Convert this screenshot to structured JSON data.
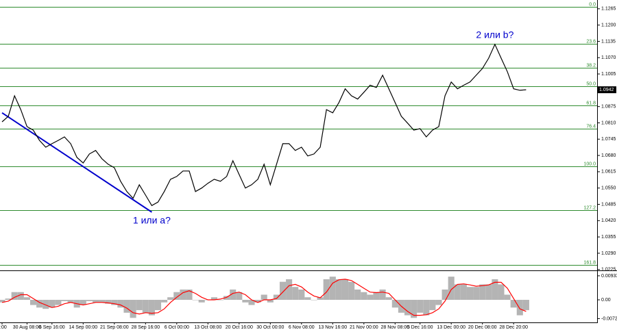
{
  "chart_data": [
    {
      "type": "line",
      "color": "#000000",
      "categories": [
        "0:00",
        null,
        null,
        null,
        "30 Aug 08:00",
        null,
        null,
        null,
        "6 Sep 16:00",
        null,
        null,
        null,
        null,
        "14 Sep 00:00",
        null,
        null,
        null,
        null,
        "21 Sep 08:00",
        null,
        null,
        null,
        null,
        "28 Sep 16:00",
        null,
        null,
        null,
        null,
        "6 Oct 00:00",
        null,
        null,
        null,
        null,
        "13 Oct 08:00",
        null,
        null,
        null,
        null,
        "20 Oct 16:00",
        null,
        null,
        null,
        null,
        "30 Oct 00:00",
        null,
        null,
        null,
        null,
        "6 Nov 08:00",
        null,
        null,
        null,
        null,
        "13 Nov 16:00",
        null,
        null,
        null,
        null,
        "21 Nov 00:00",
        null,
        null,
        null,
        null,
        "28 Nov 08:00",
        null,
        null,
        null,
        "5 Dec 16:00",
        null,
        null,
        null,
        null,
        "13 Dec 00:00",
        null,
        null,
        null,
        null,
        "20 Dec 08:00",
        null,
        null,
        null,
        null,
        "28 Dec 20:00",
        null,
        null
      ],
      "values": [
        1.0814,
        1.0836,
        1.0918,
        1.0863,
        1.0795,
        1.0781,
        1.074,
        1.0713,
        1.0727,
        1.074,
        1.0754,
        1.0727,
        1.0672,
        1.065,
        1.0686,
        1.07,
        1.0667,
        1.0645,
        1.0631,
        1.0577,
        1.0536,
        1.0509,
        1.0563,
        1.0522,
        1.048,
        1.0494,
        1.0536,
        1.0585,
        1.0596,
        1.0618,
        1.0618,
        1.0536,
        1.055,
        1.0569,
        1.0585,
        1.0577,
        1.0596,
        1.0659,
        1.0604,
        1.055,
        1.0563,
        1.0585,
        1.0645,
        1.0563,
        1.0645,
        1.0727,
        1.0727,
        1.07,
        1.0713,
        1.0678,
        1.0686,
        1.0713,
        1.0863,
        1.085,
        1.0891,
        1.0946,
        1.0918,
        1.0905,
        1.0932,
        1.096,
        1.0951,
        1.1,
        1.0946,
        1.0891,
        1.0836,
        1.0809,
        1.0781,
        1.0787,
        1.0754,
        1.0781,
        1.0795,
        1.0918,
        1.0973,
        1.0946,
        1.096,
        1.0973,
        1.1,
        1.1027,
        1.1068,
        1.1123,
        1.1068,
        1.1014,
        1.0946,
        1.094,
        1.0942
      ],
      "ylim": [
        1.0227,
        1.13
      ],
      "yticks": [
        1.1265,
        {
          "value": 1.12,
          "label": "1.1200"
        },
        1.1135,
        {
          "value": 1.107,
          "label": "1.1070"
        },
        1.1005,
        1.0875,
        {
          "value": 1.081,
          "label": "1.0810"
        },
        1.0745,
        {
          "value": 1.068,
          "label": "1.0680"
        },
        1.0615,
        {
          "value": 1.055,
          "label": "1.0550"
        },
        1.0485,
        {
          "value": 1.042,
          "label": "1.0420"
        },
        1.0355,
        {
          "value": 1.029,
          "label": "1.0290"
        },
        1.0225
      ],
      "last_price": {
        "value": 1.0942,
        "label": "1.0942"
      },
      "fib_color": "#2e8b2e",
      "fib_levels": [
        {
          "label": "0.0",
          "value": 1.1273
        },
        {
          "label": "23.6",
          "value": 1.1126
        },
        {
          "label": "38.2",
          "value": 1.103
        },
        {
          "label": "50.0",
          "value": 1.0956
        },
        {
          "label": "61.8",
          "value": 1.088
        },
        {
          "label": "76.4",
          "value": 1.0787
        },
        {
          "label": "100.0",
          "value": 1.0637
        },
        {
          "label": "127.2",
          "value": 1.0462
        },
        {
          "label": "161.8",
          "value": 1.0244
        }
      ],
      "trendline": {
        "color": "#0000cc",
        "x": [
          0,
          24
        ],
        "values": [
          1.085,
          1.0454
        ]
      },
      "annotations": [
        {
          "text": "2 или b?",
          "x": 79,
          "y": 1.1159
        },
        {
          "text": "1 или a?",
          "x": 24,
          "y": 1.0418
        }
      ]
    },
    {
      "type": "bar",
      "color": "#b4b4b4",
      "values": [
        -0.001,
        0.0005,
        0.003,
        0.003,
        0.001,
        -0.002,
        -0.003,
        -0.0035,
        -0.003,
        -0.002,
        -0.0005,
        -0.001,
        -0.003,
        -0.002,
        -0.0005,
        -0.001,
        -0.001,
        -0.0015,
        -0.002,
        -0.003,
        -0.005,
        -0.007,
        -0.004,
        -0.005,
        -0.006,
        -0.004,
        -0.001,
        0.001,
        0.003,
        0.004,
        0.004,
        0.0,
        -0.001,
        0.0,
        0.001,
        0.0,
        0.0015,
        0.004,
        0.003,
        -0.001,
        -0.002,
        -0.001,
        0.002,
        -0.001,
        0.002,
        0.007,
        0.008,
        0.005,
        0.004,
        0.001,
        0.0,
        0.001,
        0.008,
        0.009,
        0.008,
        0.008,
        0.007,
        0.004,
        0.003,
        0.002,
        0.003,
        0.004,
        0.001,
        -0.003,
        -0.005,
        -0.006,
        -0.007,
        -0.005,
        -0.006,
        -0.004,
        -0.002,
        0.004,
        0.009,
        0.006,
        0.006,
        0.005,
        0.005,
        0.006,
        0.006,
        0.008,
        0.006,
        0.002,
        -0.003,
        -0.006,
        -0.004
      ],
      "signal": {
        "color": "#ff0000",
        "values": [
          -0.001,
          -0.0005,
          0.001,
          0.002,
          0.002,
          0.0005,
          -0.001,
          -0.002,
          -0.003,
          -0.0025,
          -0.0015,
          -0.001,
          -0.0015,
          -0.002,
          -0.0015,
          -0.001,
          -0.001,
          -0.0012,
          -0.0015,
          -0.002,
          -0.0032,
          -0.005,
          -0.0055,
          -0.005,
          -0.0052,
          -0.005,
          -0.0035,
          -0.001,
          0.001,
          0.0028,
          0.0035,
          0.0025,
          0.001,
          0.0,
          0.0,
          0.0003,
          0.001,
          0.0025,
          0.003,
          0.002,
          0.0,
          -0.001,
          0.0,
          0.0,
          0.0005,
          0.003,
          0.0055,
          0.006,
          0.005,
          0.003,
          0.0015,
          0.0008,
          0.003,
          0.0065,
          0.0078,
          0.008,
          0.0075,
          0.006,
          0.0045,
          0.003,
          0.0028,
          0.003,
          0.0025,
          0.0,
          -0.0025,
          -0.0045,
          -0.006,
          -0.006,
          -0.0058,
          -0.005,
          -0.0035,
          -0.0005,
          0.004,
          0.006,
          0.0062,
          0.0058,
          0.0053,
          0.0055,
          0.0058,
          0.0068,
          0.0068,
          0.0045,
          0.0005,
          -0.0035,
          -0.0045
        ]
      },
      "ylim": [
        -0.0085,
        0.0109
      ],
      "yticks": [
        0.00933,
        {
          "value": 0,
          "label": "0.00"
        },
        -0.00728
      ]
    }
  ]
}
